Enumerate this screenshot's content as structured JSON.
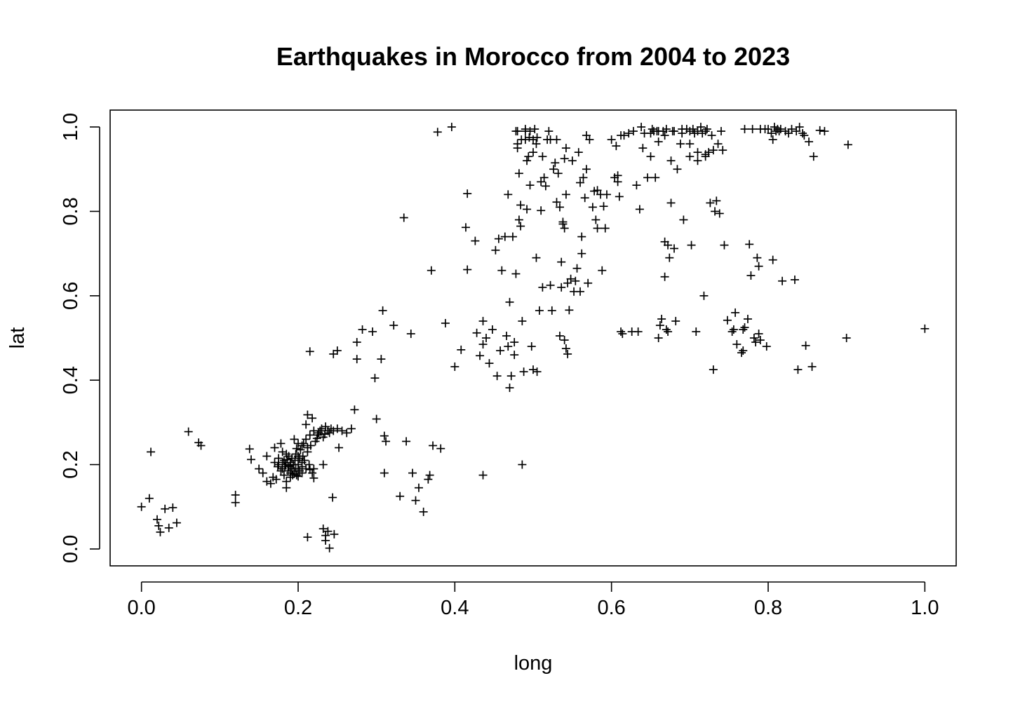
{
  "chart_data": {
    "type": "scatter",
    "title": "Earthquakes in Morocco from 2004 to 2023",
    "xlabel": "long",
    "ylabel": "lat",
    "xlim": [
      -0.04,
      1.04
    ],
    "ylim": [
      -0.04,
      1.04
    ],
    "xticks": [
      0.0,
      0.2,
      0.4,
      0.6,
      0.8,
      1.0
    ],
    "yticks": [
      0.0,
      0.2,
      0.4,
      0.6,
      0.8,
      1.0
    ],
    "xtick_labels": [
      "0.0",
      "0.2",
      "0.4",
      "0.6",
      "0.8",
      "1.0"
    ],
    "ytick_labels": [
      "0.0",
      "0.2",
      "0.4",
      "0.6",
      "0.8",
      "1.0"
    ],
    "marker": "plus",
    "grid": false,
    "color": "#000000",
    "points": [
      [
        0.0,
        0.1
      ],
      [
        0.01,
        0.12
      ],
      [
        0.012,
        0.23
      ],
      [
        0.02,
        0.07
      ],
      [
        0.022,
        0.055
      ],
      [
        0.024,
        0.04
      ],
      [
        0.03,
        0.095
      ],
      [
        0.035,
        0.05
      ],
      [
        0.04,
        0.098
      ],
      [
        0.045,
        0.062
      ],
      [
        0.06,
        0.278
      ],
      [
        0.073,
        0.252
      ],
      [
        0.076,
        0.245
      ],
      [
        0.12,
        0.128
      ],
      [
        0.12,
        0.11
      ],
      [
        0.138,
        0.237
      ],
      [
        0.14,
        0.212
      ],
      [
        0.15,
        0.19
      ],
      [
        0.155,
        0.18
      ],
      [
        0.16,
        0.22
      ],
      [
        0.16,
        0.16
      ],
      [
        0.165,
        0.155
      ],
      [
        0.168,
        0.17
      ],
      [
        0.17,
        0.24
      ],
      [
        0.172,
        0.165
      ],
      [
        0.175,
        0.2
      ],
      [
        0.175,
        0.215
      ],
      [
        0.178,
        0.185
      ],
      [
        0.18,
        0.23
      ],
      [
        0.18,
        0.19
      ],
      [
        0.182,
        0.21
      ],
      [
        0.182,
        0.175
      ],
      [
        0.184,
        0.2
      ],
      [
        0.185,
        0.145
      ],
      [
        0.185,
        0.225
      ],
      [
        0.187,
        0.185
      ],
      [
        0.188,
        0.195
      ],
      [
        0.19,
        0.17
      ],
      [
        0.19,
        0.205
      ],
      [
        0.19,
        0.18
      ],
      [
        0.192,
        0.19
      ],
      [
        0.193,
        0.175
      ],
      [
        0.194,
        0.2
      ],
      [
        0.195,
        0.185
      ],
      [
        0.196,
        0.21
      ],
      [
        0.197,
        0.19
      ],
      [
        0.198,
        0.175
      ],
      [
        0.2,
        0.19
      ],
      [
        0.2,
        0.2
      ],
      [
        0.2,
        0.22
      ],
      [
        0.202,
        0.185
      ],
      [
        0.203,
        0.235
      ],
      [
        0.205,
        0.18
      ],
      [
        0.205,
        0.195
      ],
      [
        0.207,
        0.25
      ],
      [
        0.208,
        0.21
      ],
      [
        0.21,
        0.26
      ],
      [
        0.21,
        0.19
      ],
      [
        0.212,
        0.24
      ],
      [
        0.214,
        0.2
      ],
      [
        0.215,
        0.27
      ],
      [
        0.218,
        0.18
      ],
      [
        0.22,
        0.19
      ],
      [
        0.22,
        0.28
      ],
      [
        0.222,
        0.255
      ],
      [
        0.225,
        0.27
      ],
      [
        0.228,
        0.28
      ],
      [
        0.23,
        0.285
      ],
      [
        0.232,
        0.265
      ],
      [
        0.235,
        0.29
      ],
      [
        0.238,
        0.28
      ],
      [
        0.24,
        0.275
      ],
      [
        0.242,
        0.285
      ],
      [
        0.245,
        0.28
      ],
      [
        0.212,
        0.318
      ],
      [
        0.218,
        0.31
      ],
      [
        0.195,
        0.26
      ],
      [
        0.2,
        0.25
      ],
      [
        0.205,
        0.245
      ],
      [
        0.21,
        0.295
      ],
      [
        0.178,
        0.25
      ],
      [
        0.232,
        0.2
      ],
      [
        0.22,
        0.168
      ],
      [
        0.215,
        0.188
      ],
      [
        0.185,
        0.16
      ],
      [
        0.19,
        0.198
      ],
      [
        0.186,
        0.212
      ],
      [
        0.195,
        0.178
      ],
      [
        0.2,
        0.172
      ],
      [
        0.205,
        0.205
      ],
      [
        0.198,
        0.238
      ],
      [
        0.17,
        0.205
      ],
      [
        0.174,
        0.195
      ],
      [
        0.18,
        0.205
      ],
      [
        0.183,
        0.195
      ],
      [
        0.188,
        0.22
      ],
      [
        0.192,
        0.215
      ],
      [
        0.197,
        0.225
      ],
      [
        0.202,
        0.215
      ],
      [
        0.206,
        0.22
      ],
      [
        0.212,
        0.23
      ],
      [
        0.216,
        0.245
      ],
      [
        0.224,
        0.262
      ],
      [
        0.226,
        0.275
      ],
      [
        0.234,
        0.272
      ],
      [
        0.215,
        0.468
      ],
      [
        0.245,
        0.462
      ],
      [
        0.25,
        0.47
      ],
      [
        0.25,
        0.285
      ],
      [
        0.252,
        0.24
      ],
      [
        0.256,
        0.28
      ],
      [
        0.262,
        0.275
      ],
      [
        0.268,
        0.285
      ],
      [
        0.272,
        0.33
      ],
      [
        0.232,
        0.048
      ],
      [
        0.235,
        0.032
      ],
      [
        0.235,
        0.02
      ],
      [
        0.238,
        0.042
      ],
      [
        0.24,
        0.002
      ],
      [
        0.244,
        0.122
      ],
      [
        0.246,
        0.035
      ],
      [
        0.212,
        0.028
      ],
      [
        0.275,
        0.49
      ],
      [
        0.275,
        0.45
      ],
      [
        0.282,
        0.52
      ],
      [
        0.295,
        0.515
      ],
      [
        0.298,
        0.405
      ],
      [
        0.3,
        0.308
      ],
      [
        0.306,
        0.45
      ],
      [
        0.308,
        0.565
      ],
      [
        0.31,
        0.268
      ],
      [
        0.31,
        0.18
      ],
      [
        0.312,
        0.255
      ],
      [
        0.322,
        0.53
      ],
      [
        0.33,
        0.125
      ],
      [
        0.335,
        0.785
      ],
      [
        0.338,
        0.255
      ],
      [
        0.344,
        0.51
      ],
      [
        0.346,
        0.18
      ],
      [
        0.35,
        0.115
      ],
      [
        0.354,
        0.145
      ],
      [
        0.36,
        0.088
      ],
      [
        0.366,
        0.165
      ],
      [
        0.368,
        0.175
      ],
      [
        0.37,
        0.66
      ],
      [
        0.372,
        0.245
      ],
      [
        0.378,
        0.988
      ],
      [
        0.382,
        0.238
      ],
      [
        0.388,
        0.535
      ],
      [
        0.396,
        1.0
      ],
      [
        0.4,
        0.432
      ],
      [
        0.408,
        0.472
      ],
      [
        0.414,
        0.762
      ],
      [
        0.416,
        0.662
      ],
      [
        0.416,
        0.842
      ],
      [
        0.426,
        0.73
      ],
      [
        0.428,
        0.512
      ],
      [
        0.432,
        0.458
      ],
      [
        0.436,
        0.175
      ],
      [
        0.436,
        0.485
      ],
      [
        0.436,
        0.54
      ],
      [
        0.44,
        0.5
      ],
      [
        0.444,
        0.44
      ],
      [
        0.448,
        0.52
      ],
      [
        0.452,
        0.708
      ],
      [
        0.454,
        0.41
      ],
      [
        0.456,
        0.735
      ],
      [
        0.458,
        0.47
      ],
      [
        0.46,
        0.66
      ],
      [
        0.464,
        0.74
      ],
      [
        0.466,
        0.505
      ],
      [
        0.468,
        0.84
      ],
      [
        0.468,
        0.48
      ],
      [
        0.47,
        0.585
      ],
      [
        0.47,
        0.382
      ],
      [
        0.472,
        0.41
      ],
      [
        0.474,
        0.74
      ],
      [
        0.476,
        0.49
      ],
      [
        0.476,
        0.46
      ],
      [
        0.478,
        0.652
      ],
      [
        0.478,
        0.99
      ],
      [
        0.48,
        0.96
      ],
      [
        0.48,
        0.95
      ],
      [
        0.482,
        0.89
      ],
      [
        0.482,
        0.78
      ],
      [
        0.484,
        0.815
      ],
      [
        0.484,
        0.765
      ],
      [
        0.486,
        0.54
      ],
      [
        0.486,
        0.2
      ],
      [
        0.488,
        0.42
      ],
      [
        0.49,
        0.99
      ],
      [
        0.49,
        0.97
      ],
      [
        0.492,
        0.92
      ],
      [
        0.492,
        0.805
      ],
      [
        0.494,
        0.93
      ],
      [
        0.496,
        0.99
      ],
      [
        0.496,
        0.862
      ],
      [
        0.498,
        0.48
      ],
      [
        0.5,
        0.97
      ],
      [
        0.5,
        0.94
      ],
      [
        0.5,
        0.425
      ],
      [
        0.502,
        0.995
      ],
      [
        0.504,
        0.96
      ],
      [
        0.504,
        0.69
      ],
      [
        0.505,
        0.42
      ],
      [
        0.508,
        0.565
      ],
      [
        0.51,
        0.87
      ],
      [
        0.51,
        0.802
      ],
      [
        0.512,
        0.62
      ],
      [
        0.512,
        0.93
      ],
      [
        0.514,
        0.88
      ],
      [
        0.516,
        0.86
      ],
      [
        0.518,
        0.97
      ],
      [
        0.52,
        0.99
      ],
      [
        0.522,
        0.97
      ],
      [
        0.522,
        0.625
      ],
      [
        0.524,
        0.565
      ],
      [
        0.526,
        0.9
      ],
      [
        0.528,
        0.915
      ],
      [
        0.53,
        0.97
      ],
      [
        0.53,
        0.822
      ],
      [
        0.532,
        0.89
      ],
      [
        0.534,
        0.505
      ],
      [
        0.534,
        0.81
      ],
      [
        0.536,
        0.68
      ],
      [
        0.536,
        0.62
      ],
      [
        0.538,
        0.77
      ],
      [
        0.538,
        0.775
      ],
      [
        0.54,
        0.925
      ],
      [
        0.54,
        0.76
      ],
      [
        0.54,
        0.495
      ],
      [
        0.542,
        0.95
      ],
      [
        0.542,
        0.84
      ],
      [
        0.542,
        0.475
      ],
      [
        0.544,
        0.63
      ],
      [
        0.544,
        0.462
      ],
      [
        0.546,
        0.566
      ],
      [
        0.548,
        0.64
      ],
      [
        0.55,
        0.92
      ],
      [
        0.552,
        0.61
      ],
      [
        0.554,
        0.635
      ],
      [
        0.556,
        0.665
      ],
      [
        0.558,
        0.94
      ],
      [
        0.56,
        0.868
      ],
      [
        0.56,
        0.61
      ],
      [
        0.562,
        0.74
      ],
      [
        0.562,
        0.7
      ],
      [
        0.564,
        0.88
      ],
      [
        0.566,
        0.832
      ],
      [
        0.568,
        0.98
      ],
      [
        0.568,
        0.9
      ],
      [
        0.57,
        0.63
      ],
      [
        0.572,
        0.97
      ],
      [
        0.576,
        0.81
      ],
      [
        0.578,
        0.848
      ],
      [
        0.58,
        0.78
      ],
      [
        0.582,
        0.76
      ],
      [
        0.582,
        0.85
      ],
      [
        0.586,
        0.84
      ],
      [
        0.588,
        0.66
      ],
      [
        0.59,
        0.812
      ],
      [
        0.592,
        0.76
      ],
      [
        0.594,
        0.84
      ],
      [
        0.6,
        0.97
      ],
      [
        0.604,
        0.88
      ],
      [
        0.606,
        0.955
      ],
      [
        0.608,
        0.87
      ],
      [
        0.608,
        0.885
      ],
      [
        0.61,
        0.835
      ],
      [
        0.612,
        0.98
      ],
      [
        0.612,
        0.515
      ],
      [
        0.614,
        0.51
      ],
      [
        0.616,
        0.98
      ],
      [
        0.622,
        0.985
      ],
      [
        0.626,
        0.515
      ],
      [
        0.628,
        0.99
      ],
      [
        0.632,
        0.862
      ],
      [
        0.634,
        0.515
      ],
      [
        0.636,
        0.805
      ],
      [
        0.638,
        1.0
      ],
      [
        0.64,
        0.95
      ],
      [
        0.642,
        0.985
      ],
      [
        0.646,
        0.88
      ],
      [
        0.65,
        0.93
      ],
      [
        0.652,
        0.995
      ],
      [
        0.654,
        0.99
      ],
      [
        0.656,
        0.88
      ],
      [
        0.658,
        0.99
      ],
      [
        0.66,
        0.5
      ],
      [
        0.66,
        0.965
      ],
      [
        0.662,
        0.53
      ],
      [
        0.664,
        0.545
      ],
      [
        0.666,
        0.99
      ],
      [
        0.668,
        0.728
      ],
      [
        0.668,
        0.645
      ],
      [
        0.668,
        0.98
      ],
      [
        0.67,
        0.52
      ],
      [
        0.672,
        0.72
      ],
      [
        0.672,
        0.515
      ],
      [
        0.674,
        0.69
      ],
      [
        0.676,
        0.82
      ],
      [
        0.676,
        0.92
      ],
      [
        0.678,
        0.99
      ],
      [
        0.68,
        0.712
      ],
      [
        0.682,
        0.54
      ],
      [
        0.684,
        0.9
      ],
      [
        0.688,
        0.96
      ],
      [
        0.69,
        0.995
      ],
      [
        0.692,
        0.78
      ],
      [
        0.696,
        0.995
      ],
      [
        0.7,
        0.93
      ],
      [
        0.702,
        0.72
      ],
      [
        0.704,
        0.995
      ],
      [
        0.706,
        0.985
      ],
      [
        0.708,
        0.515
      ],
      [
        0.71,
        0.92
      ],
      [
        0.71,
        0.99
      ],
      [
        0.714,
        1.0
      ],
      [
        0.716,
        0.985
      ],
      [
        0.718,
        0.6
      ],
      [
        0.72,
        0.93
      ],
      [
        0.722,
        0.995
      ],
      [
        0.724,
        0.94
      ],
      [
        0.726,
        0.82
      ],
      [
        0.728,
        0.98
      ],
      [
        0.73,
        0.945
      ],
      [
        0.73,
        0.425
      ],
      [
        0.732,
        0.8
      ],
      [
        0.734,
        0.825
      ],
      [
        0.736,
        0.96
      ],
      [
        0.738,
        0.795
      ],
      [
        0.74,
        0.99
      ],
      [
        0.742,
        0.945
      ],
      [
        0.744,
        0.72
      ],
      [
        0.748,
        0.542
      ],
      [
        0.754,
        0.515
      ],
      [
        0.756,
        0.52
      ],
      [
        0.758,
        0.56
      ],
      [
        0.76,
        0.485
      ],
      [
        0.766,
        0.465
      ],
      [
        0.768,
        0.47
      ],
      [
        0.768,
        0.52
      ],
      [
        0.77,
        0.525
      ],
      [
        0.774,
        0.545
      ],
      [
        0.776,
        0.722
      ],
      [
        0.778,
        0.648
      ],
      [
        0.782,
        0.5
      ],
      [
        0.784,
        0.49
      ],
      [
        0.786,
        0.69
      ],
      [
        0.788,
        0.67
      ],
      [
        0.788,
        0.51
      ],
      [
        0.79,
        0.495
      ],
      [
        0.79,
        0.995
      ],
      [
        0.796,
        0.995
      ],
      [
        0.798,
        0.48
      ],
      [
        0.8,
        0.995
      ],
      [
        0.804,
        0.985
      ],
      [
        0.806,
        0.97
      ],
      [
        0.806,
        0.685
      ],
      [
        0.808,
        1.0
      ],
      [
        0.81,
        0.99
      ],
      [
        0.812,
        0.995
      ],
      [
        0.814,
        0.99
      ],
      [
        0.816,
        0.995
      ],
      [
        0.818,
        0.635
      ],
      [
        0.822,
        0.99
      ],
      [
        0.826,
        0.985
      ],
      [
        0.83,
        0.995
      ],
      [
        0.834,
        0.638
      ],
      [
        0.836,
        0.99
      ],
      [
        0.838,
        0.425
      ],
      [
        0.84,
        1.0
      ],
      [
        0.844,
        0.985
      ],
      [
        0.846,
        0.98
      ],
      [
        0.848,
        0.482
      ],
      [
        0.852,
        0.965
      ],
      [
        0.856,
        0.432
      ],
      [
        0.858,
        0.93
      ],
      [
        0.866,
        0.992
      ],
      [
        0.872,
        0.99
      ],
      [
        0.9,
        0.5
      ],
      [
        0.902,
        0.958
      ],
      [
        1.0,
        0.522
      ],
      [
        0.78,
        0.995
      ],
      [
        0.77,
        0.995
      ],
      [
        0.68,
        0.99
      ],
      [
        0.69,
        0.985
      ],
      [
        0.7,
        0.99
      ],
      [
        0.72,
        0.99
      ],
      [
        0.72,
        0.935
      ],
      [
        0.71,
        0.94
      ],
      [
        0.7,
        0.96
      ],
      [
        0.65,
        0.985
      ],
      [
        0.66,
        0.99
      ],
      [
        0.67,
        0.995
      ],
      [
        0.505,
        0.975
      ],
      [
        0.495,
        0.975
      ],
      [
        0.485,
        0.97
      ],
      [
        0.48,
        0.99
      ],
      [
        0.49,
        0.995
      ]
    ]
  }
}
